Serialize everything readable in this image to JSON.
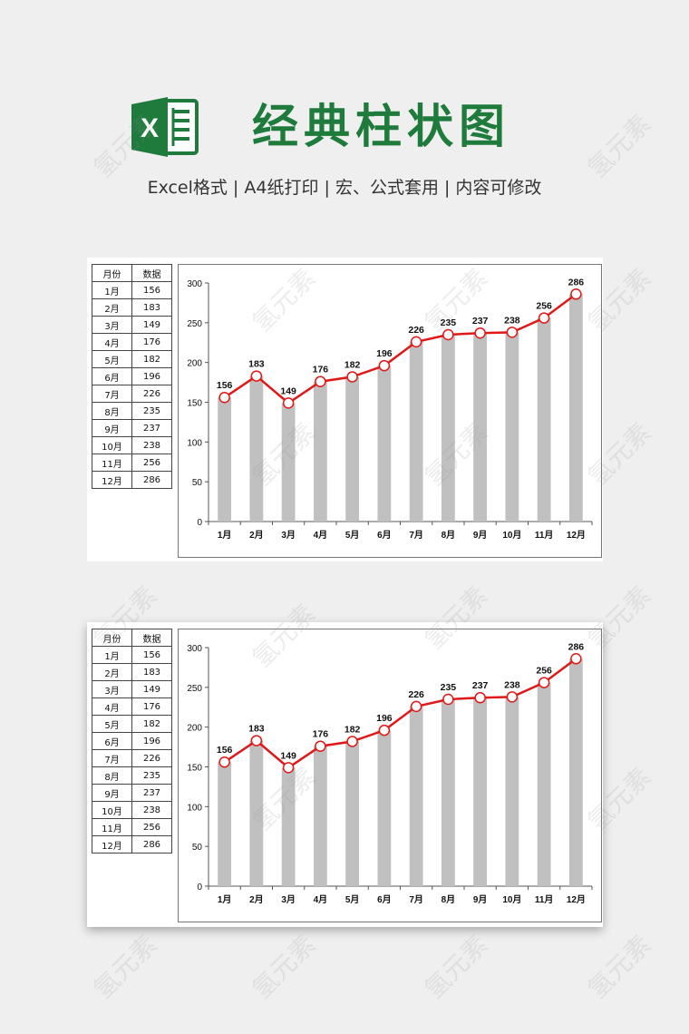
{
  "header": {
    "title": "经典柱状图",
    "subtitle": "Excel格式 |  A4纸打印 | 宏、公式套用 | 内容可修改"
  },
  "logo": {
    "icon": "excel-logo-icon",
    "color": "#1e7b3c",
    "letter": "X"
  },
  "table": {
    "headers": [
      "月份",
      "数据"
    ],
    "rows": [
      [
        "1月",
        "156"
      ],
      [
        "2月",
        "183"
      ],
      [
        "3月",
        "149"
      ],
      [
        "4月",
        "176"
      ],
      [
        "5月",
        "182"
      ],
      [
        "6月",
        "196"
      ],
      [
        "7月",
        "226"
      ],
      [
        "8月",
        "235"
      ],
      [
        "9月",
        "237"
      ],
      [
        "10月",
        "238"
      ],
      [
        "11月",
        "256"
      ],
      [
        "12月",
        "286"
      ]
    ]
  },
  "chart_data": [
    {
      "type": "bar",
      "categories": [
        "1月",
        "2月",
        "3月",
        "4月",
        "5月",
        "6月",
        "7月",
        "8月",
        "9月",
        "10月",
        "11月",
        "12月"
      ],
      "series": [
        {
          "type": "bar",
          "values": [
            156,
            183,
            149,
            176,
            182,
            196,
            226,
            235,
            237,
            238,
            256,
            286
          ],
          "color": "#c0c0c0"
        },
        {
          "type": "line",
          "values": [
            156,
            183,
            149,
            176,
            182,
            196,
            226,
            235,
            237,
            238,
            256,
            286
          ],
          "color": "#e01818"
        }
      ],
      "data_labels": [
        "156",
        "183",
        "149",
        "176",
        "182",
        "196",
        "226",
        "235",
        "237",
        "238",
        "256",
        "286"
      ],
      "yticks": [
        "0",
        "50",
        "100",
        "150",
        "200",
        "250",
        "300"
      ],
      "ylim": [
        0,
        300
      ],
      "grid": false,
      "legend": "none"
    },
    {
      "type": "bar",
      "categories": [
        "1月",
        "2月",
        "3月",
        "4月",
        "5月",
        "6月",
        "7月",
        "8月",
        "9月",
        "10月",
        "11月",
        "12月"
      ],
      "series": [
        {
          "type": "bar",
          "values": [
            156,
            183,
            149,
            176,
            182,
            196,
            226,
            235,
            237,
            238,
            256,
            286
          ],
          "color": "#c0c0c0"
        },
        {
          "type": "line",
          "values": [
            156,
            183,
            149,
            176,
            182,
            196,
            226,
            235,
            237,
            238,
            256,
            286
          ],
          "color": "#e01818"
        }
      ],
      "data_labels": [
        "156",
        "183",
        "149",
        "176",
        "182",
        "196",
        "226",
        "235",
        "237",
        "238",
        "256",
        "286"
      ],
      "yticks": [
        "0",
        "50",
        "100",
        "150",
        "200",
        "250",
        "300"
      ],
      "ylim": [
        0,
        300
      ],
      "grid": false,
      "legend": "none"
    }
  ],
  "watermark": "氢元素"
}
